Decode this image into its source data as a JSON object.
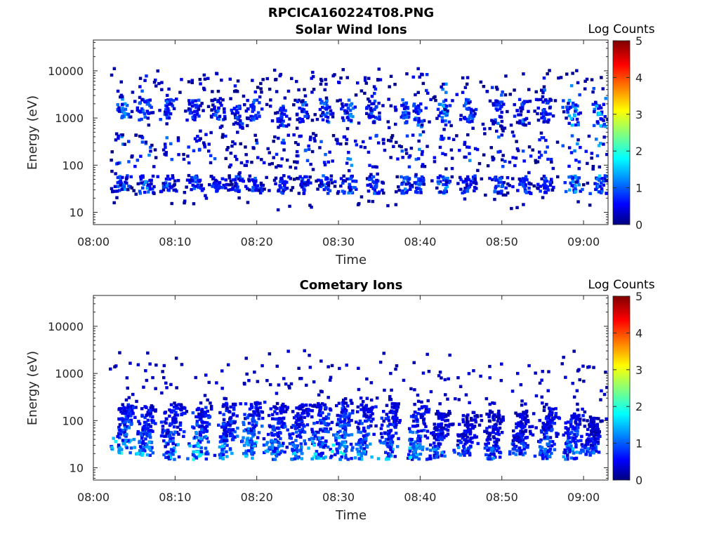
{
  "figure_title": "RPCICA160224T08.PNG",
  "colorscale": [
    "#00007f",
    "#0000ff",
    "#007fff",
    "#00ffff",
    "#7fff7f",
    "#ffff00",
    "#ff7f00",
    "#ff0000",
    "#7f0000"
  ],
  "chart_data": [
    {
      "type": "heatmap",
      "title": "Solar Wind Ions",
      "xlabel": "Time",
      "ylabel": "Energy (eV)",
      "xlim": [
        "08:00",
        "09:03"
      ],
      "ylim": [
        5.5,
        45000
      ],
      "yscale": "log",
      "xticks": [
        "08:00",
        "08:10",
        "08:20",
        "08:30",
        "08:40",
        "08:50",
        "09:00"
      ],
      "yticks": [
        "10",
        "100",
        "1000",
        "10000"
      ],
      "colorbar_label": "Log Counts",
      "colorbar_ticks": [
        "0",
        "1",
        "2",
        "3",
        "4",
        "5"
      ],
      "colorbar_range": [
        0,
        5
      ],
      "bursts": [
        {
          "t": "08:03.7",
          "e_hi": [
            1000,
            2000
          ],
          "e_lo": [
            25,
            60
          ],
          "peak": 1.4
        },
        {
          "t": "08:06.4",
          "e_hi": [
            900,
            2500
          ],
          "e_lo": [
            25,
            60
          ],
          "peak": 1.4
        },
        {
          "t": "08:09.2",
          "e_hi": [
            900,
            2500
          ],
          "e_lo": [
            25,
            60
          ],
          "peak": 1.3
        },
        {
          "t": "08:12.4",
          "e_hi": [
            900,
            2500
          ],
          "e_lo": [
            25,
            60
          ],
          "peak": 1.2
        },
        {
          "t": "08:15.3",
          "e_hi": [
            900,
            2500
          ],
          "e_lo": [
            25,
            60
          ],
          "peak": 1.2
        },
        {
          "t": "08:17.8",
          "e_hi": [
            600,
            1800
          ],
          "e_lo": [
            25,
            60
          ],
          "peak": 1.1
        },
        {
          "t": "08:19.8",
          "e_hi": [
            800,
            2500
          ],
          "e_lo": [
            25,
            60
          ],
          "peak": 1.2
        },
        {
          "t": "08:23.2",
          "e_hi": [
            600,
            1800
          ],
          "e_lo": [
            25,
            60
          ],
          "peak": 1.1
        },
        {
          "t": "08:25.7",
          "e_hi": [
            800,
            2500
          ],
          "e_lo": [
            25,
            60
          ],
          "peak": 1.2
        },
        {
          "t": "08:28.5",
          "e_hi": [
            800,
            2500
          ],
          "e_lo": [
            25,
            60
          ],
          "peak": 1.3
        },
        {
          "t": "08:31.3",
          "e_hi": [
            800,
            2500
          ],
          "e_lo": [
            25,
            60
          ],
          "peak": 1.4
        },
        {
          "t": "08:34.4",
          "e_hi": [
            800,
            2500
          ],
          "e_lo": [
            25,
            60
          ],
          "peak": 1.2
        },
        {
          "t": "08:38.2",
          "e_hi": [
            700,
            2500
          ],
          "e_lo": [
            25,
            60
          ],
          "peak": 1.2
        },
        {
          "t": "08:39.8",
          "e_hi": [
            600,
            2000
          ],
          "e_lo": [
            25,
            60
          ],
          "peak": 1.3
        },
        {
          "t": "08:43.0",
          "e_hi": [
            700,
            2500
          ],
          "e_lo": [
            25,
            60
          ],
          "peak": 1.5
        },
        {
          "t": "08:46.0",
          "e_hi": [
            800,
            2500
          ],
          "e_lo": [
            25,
            60
          ],
          "peak": 1.3
        },
        {
          "t": "08:49.6",
          "e_hi": [
            700,
            2500
          ],
          "e_lo": [
            25,
            60
          ],
          "peak": 1.2
        },
        {
          "t": "08:52.6",
          "e_hi": [
            700,
            2500
          ],
          "e_lo": [
            25,
            60
          ],
          "peak": 1.2
        },
        {
          "t": "08:55.3",
          "e_hi": [
            800,
            2500
          ],
          "e_lo": [
            25,
            60
          ],
          "peak": 1.1
        },
        {
          "t": "08:58.7",
          "e_hi": [
            700,
            2500
          ],
          "e_lo": [
            25,
            60
          ],
          "peak": 1.6
        },
        {
          "t": "09:02.0",
          "e_hi": [
            600,
            2000
          ],
          "e_lo": [
            25,
            60
          ],
          "peak": 1.6
        }
      ]
    },
    {
      "type": "heatmap",
      "title": "Cometary Ions",
      "xlabel": "Time",
      "ylabel": "Energy (eV)",
      "xlim": [
        "08:00",
        "09:03"
      ],
      "ylim": [
        5.5,
        45000
      ],
      "yscale": "log",
      "xticks": [
        "08:00",
        "08:10",
        "08:20",
        "08:30",
        "08:40",
        "08:50",
        "09:00"
      ],
      "yticks": [
        "10",
        "100",
        "1000",
        "10000"
      ],
      "colorbar_label": "Log Counts",
      "colorbar_ticks": [
        "0",
        "1",
        "2",
        "3",
        "4",
        "5"
      ],
      "colorbar_range": [
        0,
        5
      ],
      "bursts": [
        {
          "t": "08:03.9",
          "e_range": [
            20,
            220
          ],
          "peak": 1.8
        },
        {
          "t": "08:06.7",
          "e_range": [
            18,
            200
          ],
          "peak": 1.6
        },
        {
          "t": "08:09.8",
          "e_range": [
            15,
            220
          ],
          "peak": 1.5
        },
        {
          "t": "08:13.3",
          "e_range": [
            15,
            230
          ],
          "peak": 1.8
        },
        {
          "t": "08:16.6",
          "e_range": [
            15,
            240
          ],
          "peak": 1.6
        },
        {
          "t": "08:19.6",
          "e_range": [
            15,
            250
          ],
          "peak": 1.8
        },
        {
          "t": "08:22.5",
          "e_range": [
            15,
            230
          ],
          "peak": 1.5
        },
        {
          "t": "08:25.3",
          "e_range": [
            15,
            220
          ],
          "peak": 1.5
        },
        {
          "t": "08:27.9",
          "e_range": [
            15,
            230
          ],
          "peak": 1.7
        },
        {
          "t": "08:30.7",
          "e_range": [
            15,
            240
          ],
          "peak": 1.9
        },
        {
          "t": "08:33.3",
          "e_range": [
            15,
            230
          ],
          "peak": 1.6
        },
        {
          "t": "08:36.5",
          "e_range": [
            15,
            230
          ],
          "peak": 1.5
        },
        {
          "t": "08:39.9",
          "e_range": [
            15,
            220
          ],
          "peak": 1.6
        },
        {
          "t": "08:42.5",
          "e_range": [
            15,
            160
          ],
          "peak": 1.2
        },
        {
          "t": "08:46.0",
          "e_range": [
            18,
            150
          ],
          "peak": 1.1
        },
        {
          "t": "08:49.2",
          "e_range": [
            15,
            160
          ],
          "peak": 1.1
        },
        {
          "t": "08:52.5",
          "e_range": [
            18,
            160
          ],
          "peak": 1.1
        },
        {
          "t": "08:55.8",
          "e_range": [
            15,
            200
          ],
          "peak": 1.4
        },
        {
          "t": "08:58.8",
          "e_range": [
            15,
            180
          ],
          "peak": 1.5
        },
        {
          "t": "09:01.3",
          "e_range": [
            18,
            120
          ],
          "peak": 1.0
        }
      ]
    }
  ]
}
